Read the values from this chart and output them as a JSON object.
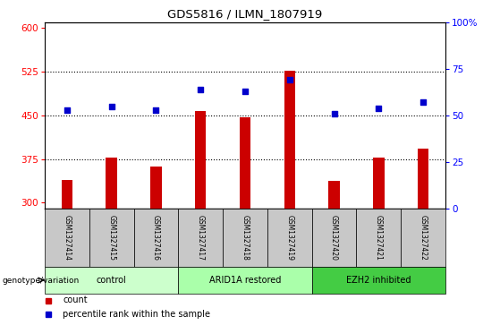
{
  "title": "GDS5816 / ILMN_1807919",
  "samples": [
    "GSM1327414",
    "GSM1327415",
    "GSM1327416",
    "GSM1327417",
    "GSM1327418",
    "GSM1327419",
    "GSM1327420",
    "GSM1327421",
    "GSM1327422"
  ],
  "counts": [
    340,
    378,
    362,
    458,
    447,
    527,
    338,
    378,
    393
  ],
  "percentile_ranks_pct": [
    53,
    55,
    53,
    64,
    63,
    69,
    51,
    54,
    57
  ],
  "ylim_left": [
    290,
    610
  ],
  "yticks_left": [
    300,
    375,
    450,
    525,
    600
  ],
  "ylim_right": [
    0,
    100
  ],
  "yticks_right": [
    0,
    25,
    50,
    75,
    100
  ],
  "ytick_right_labels": [
    "0",
    "25",
    "50",
    "75",
    "100%"
  ],
  "bar_color": "#cc0000",
  "dot_color": "#0000cc",
  "groups": [
    {
      "label": "control",
      "start": 0,
      "end": 3,
      "color": "#ccffcc"
    },
    {
      "label": "ARID1A restored",
      "start": 3,
      "end": 6,
      "color": "#aaffaa"
    },
    {
      "label": "EZH2 inhibited",
      "start": 6,
      "end": 9,
      "color": "#44cc44"
    }
  ],
  "xlabel_label": "genotype/variation",
  "legend_items": [
    {
      "label": "count",
      "color": "#cc0000"
    },
    {
      "label": "percentile rank within the sample",
      "color": "#0000cc"
    }
  ],
  "grid_yticks": [
    375,
    450,
    525
  ],
  "sample_box_color": "#c8c8c8"
}
